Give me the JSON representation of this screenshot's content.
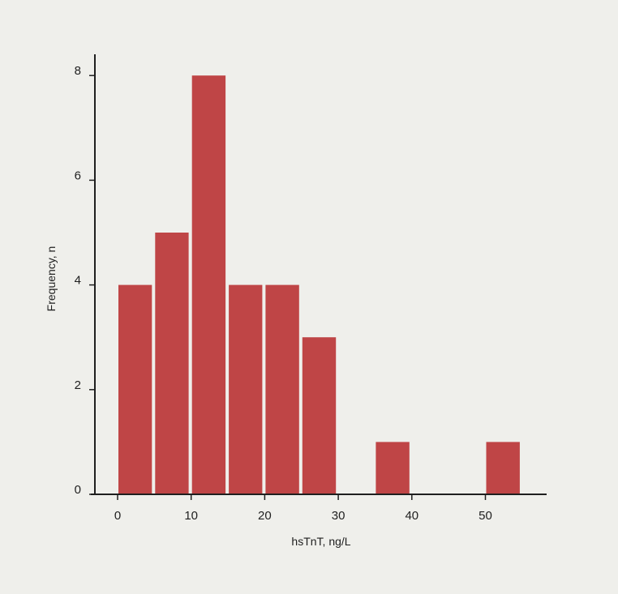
{
  "chart_data": {
    "type": "bar",
    "subtype": "histogram",
    "title": "",
    "xlabel": "hsTnT, ng/L",
    "ylabel": "Frequency, n",
    "bins": [
      {
        "x0": 0,
        "x1": 5,
        "value": 4
      },
      {
        "x0": 5,
        "x1": 10,
        "value": 5
      },
      {
        "x0": 10,
        "x1": 15,
        "value": 8
      },
      {
        "x0": 15,
        "x1": 20,
        "value": 4
      },
      {
        "x0": 20,
        "x1": 25,
        "value": 4
      },
      {
        "x0": 25,
        "x1": 30,
        "value": 3
      },
      {
        "x0": 30,
        "x1": 35,
        "value": 0
      },
      {
        "x0": 35,
        "x1": 40,
        "value": 1
      },
      {
        "x0": 40,
        "x1": 45,
        "value": 0
      },
      {
        "x0": 45,
        "x1": 50,
        "value": 0
      },
      {
        "x0": 50,
        "x1": 55,
        "value": 1
      }
    ],
    "xticks": [
      "0",
      "10",
      "20",
      "30",
      "40",
      "50"
    ],
    "yticks": [
      "0",
      "2",
      "4",
      "6",
      "8"
    ],
    "xlim": [
      -3.3,
      58
    ],
    "ylim": [
      0,
      8.4
    ],
    "grid": false,
    "legend": "none",
    "colors": {
      "bar": "#bf4546",
      "background": "#efefeb",
      "axis": "#1f1f1f"
    }
  }
}
